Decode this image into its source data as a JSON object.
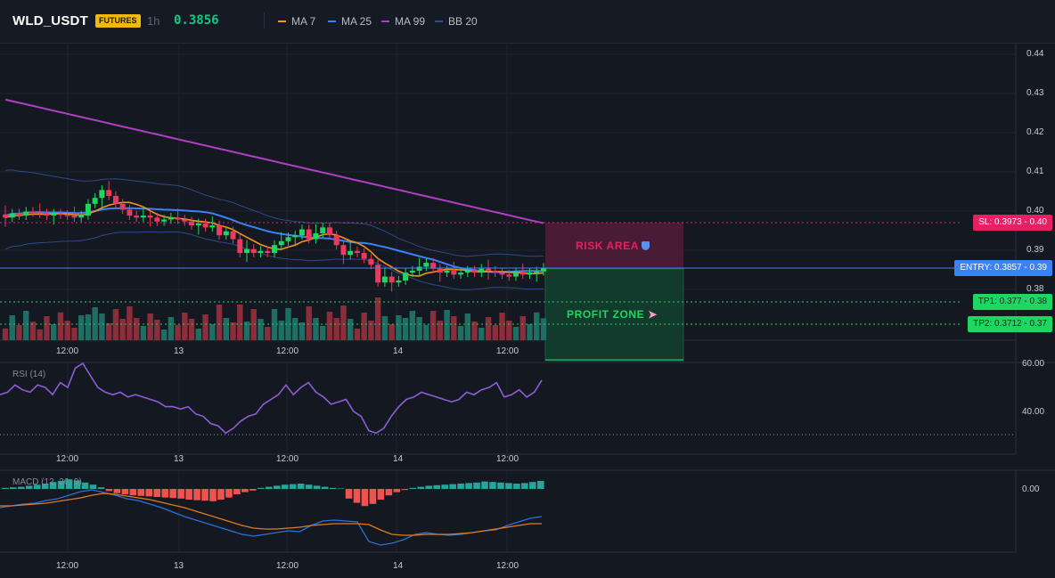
{
  "header": {
    "symbol": "WLD_USDT",
    "badge": "FUTURES",
    "timeframe": "1h",
    "last_price": "0.3856",
    "legend": [
      {
        "label": "MA 7",
        "color": "#f7931a"
      },
      {
        "label": "MA 25",
        "color": "#3b82f6"
      },
      {
        "label": "MA 99",
        "color": "#b13fc6"
      },
      {
        "label": "BB 20",
        "color": "#2d4a8a"
      }
    ]
  },
  "price_axis": [
    "0.44",
    "0.43",
    "0.42",
    "0.41",
    "0.40",
    "0.39",
    "0.38"
  ],
  "time_axis": [
    "12:00",
    "13",
    "12:00",
    "14",
    "12:00"
  ],
  "levels": {
    "sl": {
      "label": "SL: 0.3973",
      "right": "0.40",
      "color": "#e91e63"
    },
    "entry": {
      "label": "ENTRY: 0.3857",
      "right": "0.39",
      "color": "#3b82f6"
    },
    "tp1": {
      "label": "TP1: 0.377",
      "right": "0.38",
      "color": "#1ed760"
    },
    "tp2": {
      "label": "TP2: 0.3712",
      "right": "0.37",
      "color": "#1ed760"
    }
  },
  "zones": {
    "risk": {
      "label": "RISK AREA",
      "icon": "shield-icon"
    },
    "profit": {
      "label": "PROFIT ZONE",
      "icon": "rocket-icon"
    }
  },
  "rsi": {
    "title": "RSI (14)",
    "ticks": [
      "60.00",
      "40.00"
    ]
  },
  "macd": {
    "title": "MACD (12, 26, 9)",
    "ticks": [
      "0.00"
    ]
  },
  "colors": {
    "up": "#26a69a",
    "down": "#ef5350",
    "bull_candle": "#1ed760",
    "bear_candle": "#ea3a5e"
  }
}
